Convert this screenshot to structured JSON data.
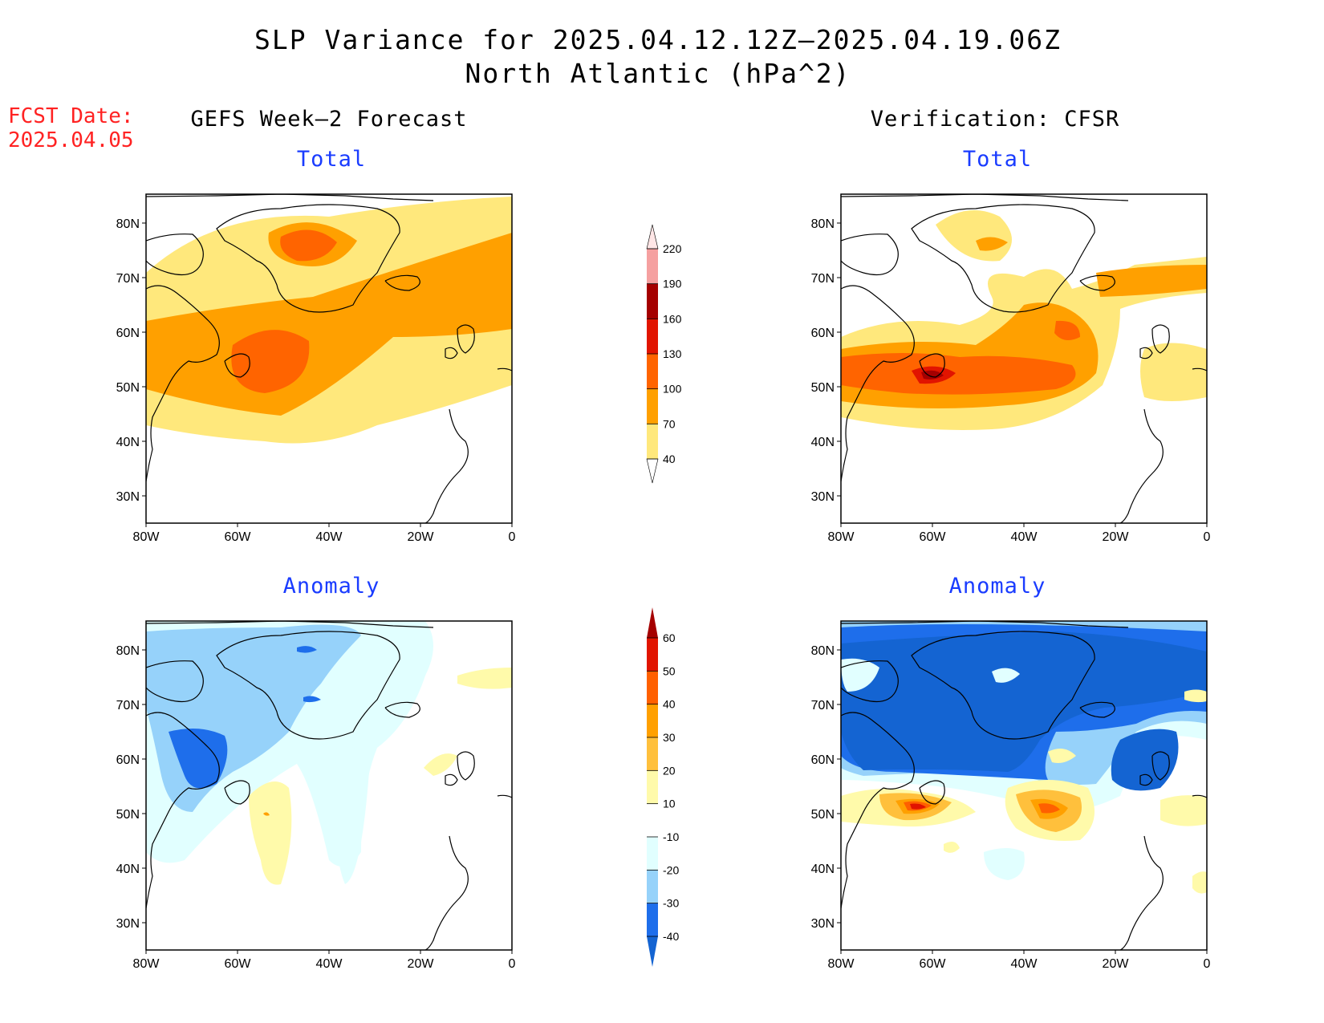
{
  "header": {
    "title_line1": "SLP Variance for 2025.04.12.12Z–2025.04.19.06Z",
    "title_line2": "North Atlantic (hPa^2)"
  },
  "fcst_date": {
    "label": "FCST Date:",
    "value": "2025.04.05"
  },
  "columns": {
    "left": "GEFS Week–2 Forecast",
    "right": "Verification: CFSR"
  },
  "panels": {
    "total_label": "Total",
    "anomaly_label": "Anomaly"
  },
  "axes": {
    "lat_labels": [
      "80N",
      "70N",
      "60N",
      "50N",
      "40N",
      "30N"
    ],
    "lon_labels": [
      "80W",
      "60W",
      "40W",
      "20W",
      "0"
    ]
  },
  "colorbar_total": {
    "levels": [
      "40",
      "70",
      "100",
      "130",
      "160",
      "190",
      "220"
    ],
    "colors": [
      "#ffe87c",
      "#ffa000",
      "#ff6400",
      "#e11400",
      "#a50000",
      "#f5a0a0",
      "#ffe6e6"
    ]
  },
  "colorbar_anomaly": {
    "levels": [
      "-40",
      "-30",
      "-20",
      "-10",
      "10",
      "20",
      "30",
      "40",
      "50",
      "60"
    ],
    "colors": [
      "#1464d2",
      "#1e6eeb",
      "#96d2fa",
      "#e1ffff",
      "#ffffff",
      "#fffaaa",
      "#ffc03c",
      "#ffa000",
      "#ff6000",
      "#e11400",
      "#a50000"
    ]
  },
  "fill_colors": {
    "t40": "#ffe87c",
    "t70": "#ffa000",
    "t100": "#ff6400",
    "t130": "#e11400",
    "t160": "#a50000",
    "an10": "#e1ffff",
    "an20": "#96d2fa",
    "an30": "#1e6eeb",
    "an40": "#1464d2",
    "ap10": "#fffaaa",
    "ap20": "#ffc03c",
    "ap30": "#ffa000",
    "ap40": "#ff6000",
    "ap50": "#e11400"
  }
}
